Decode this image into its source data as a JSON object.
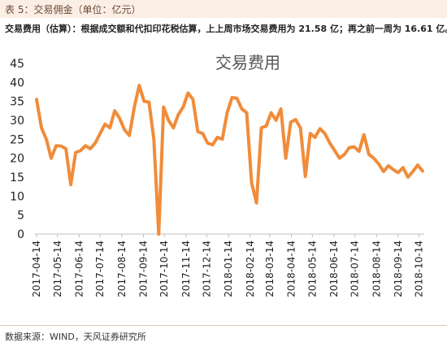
{
  "header": {
    "label": "表 5：交易佣金（单位：亿元）"
  },
  "note": {
    "text": "交易费用（估算）：根据成交额和代扣印花税估算，上上周市场交易费用为 21.58 亿；再之前一周为 16.61 亿。"
  },
  "source": {
    "text": "数据来源：WIND，天风证券研究所"
  },
  "chart_data": {
    "type": "line",
    "title": "交易费用",
    "xlabel": "",
    "ylabel": "",
    "ylim": [
      0,
      45
    ],
    "yticks": [
      0,
      5,
      10,
      15,
      20,
      25,
      30,
      35,
      40,
      45
    ],
    "tick_labels": [
      "2017-04-14",
      "2017-05-14",
      "2017-06-14",
      "2017-07-14",
      "2017-08-14",
      "2017-09-14",
      "2017-10-14",
      "2017-11-14",
      "2017-12-14",
      "2018-01-14",
      "2018-02-14",
      "2018-03-14",
      "2018-04-14",
      "2018-05-14",
      "2018-06-14",
      "2018-07-14",
      "2018-08-14",
      "2018-09-14",
      "2018-10-14"
    ],
    "line_color": "#f08c3a",
    "grid": false,
    "x": [
      "2017-04-14",
      "2017-04-21",
      "2017-04-28",
      "2017-05-05",
      "2017-05-12",
      "2017-05-19",
      "2017-05-26",
      "2017-06-02",
      "2017-06-09",
      "2017-06-16",
      "2017-06-23",
      "2017-06-30",
      "2017-07-07",
      "2017-07-14",
      "2017-07-21",
      "2017-07-28",
      "2017-08-04",
      "2017-08-11",
      "2017-08-18",
      "2017-08-25",
      "2017-09-01",
      "2017-09-08",
      "2017-09-15",
      "2017-09-22",
      "2017-09-29",
      "2017-10-06",
      "2017-10-13",
      "2017-10-20",
      "2017-10-27",
      "2017-11-03",
      "2017-11-10",
      "2017-11-17",
      "2017-11-24",
      "2017-12-01",
      "2017-12-08",
      "2017-12-15",
      "2017-12-22",
      "2017-12-29",
      "2018-01-05",
      "2018-01-12",
      "2018-01-19",
      "2018-01-26",
      "2018-02-02",
      "2018-02-09",
      "2018-02-16",
      "2018-02-23",
      "2018-03-02",
      "2018-03-09",
      "2018-03-16",
      "2018-03-23",
      "2018-03-30",
      "2018-04-06",
      "2018-04-13",
      "2018-04-20",
      "2018-04-27",
      "2018-05-04",
      "2018-05-11",
      "2018-05-18",
      "2018-05-25",
      "2018-06-01",
      "2018-06-08",
      "2018-06-15",
      "2018-06-22",
      "2018-06-29",
      "2018-07-06",
      "2018-07-13",
      "2018-07-20",
      "2018-07-27",
      "2018-08-03",
      "2018-08-10",
      "2018-08-17",
      "2018-08-24",
      "2018-08-31",
      "2018-09-07",
      "2018-09-14",
      "2018-09-21",
      "2018-09-28",
      "2018-10-05",
      "2018-10-12",
      "2018-10-19"
    ],
    "series": [
      {
        "values": [
          35.5,
          28.0,
          25.0,
          20.0,
          23.3,
          23.2,
          22.5,
          13.0,
          21.5,
          22.0,
          23.3,
          22.5,
          24.0,
          26.5,
          29.0,
          28.0,
          32.5,
          30.5,
          27.5,
          26.0,
          33.5,
          39.2,
          35.0,
          34.8,
          25.0,
          0.0,
          33.5,
          30.0,
          28.0,
          31.5,
          33.5,
          37.2,
          35.5,
          27.0,
          26.5,
          24.0,
          23.5,
          25.5,
          25.0,
          32.0,
          36.0,
          35.8,
          33.0,
          32.0,
          13.5,
          8.2,
          28.0,
          28.5,
          32.0,
          30.0,
          33.0,
          20.0,
          29.5,
          30.2,
          28.0,
          15.2,
          26.5,
          25.5,
          27.8,
          26.5,
          24.0,
          22.0,
          20.0,
          21.0,
          22.8,
          23.0,
          21.8,
          26.2,
          21.0,
          20.0,
          18.5,
          16.5,
          18.0,
          17.0,
          16.2,
          17.5,
          15.0,
          16.5,
          18.2,
          16.6
        ]
      }
    ]
  }
}
